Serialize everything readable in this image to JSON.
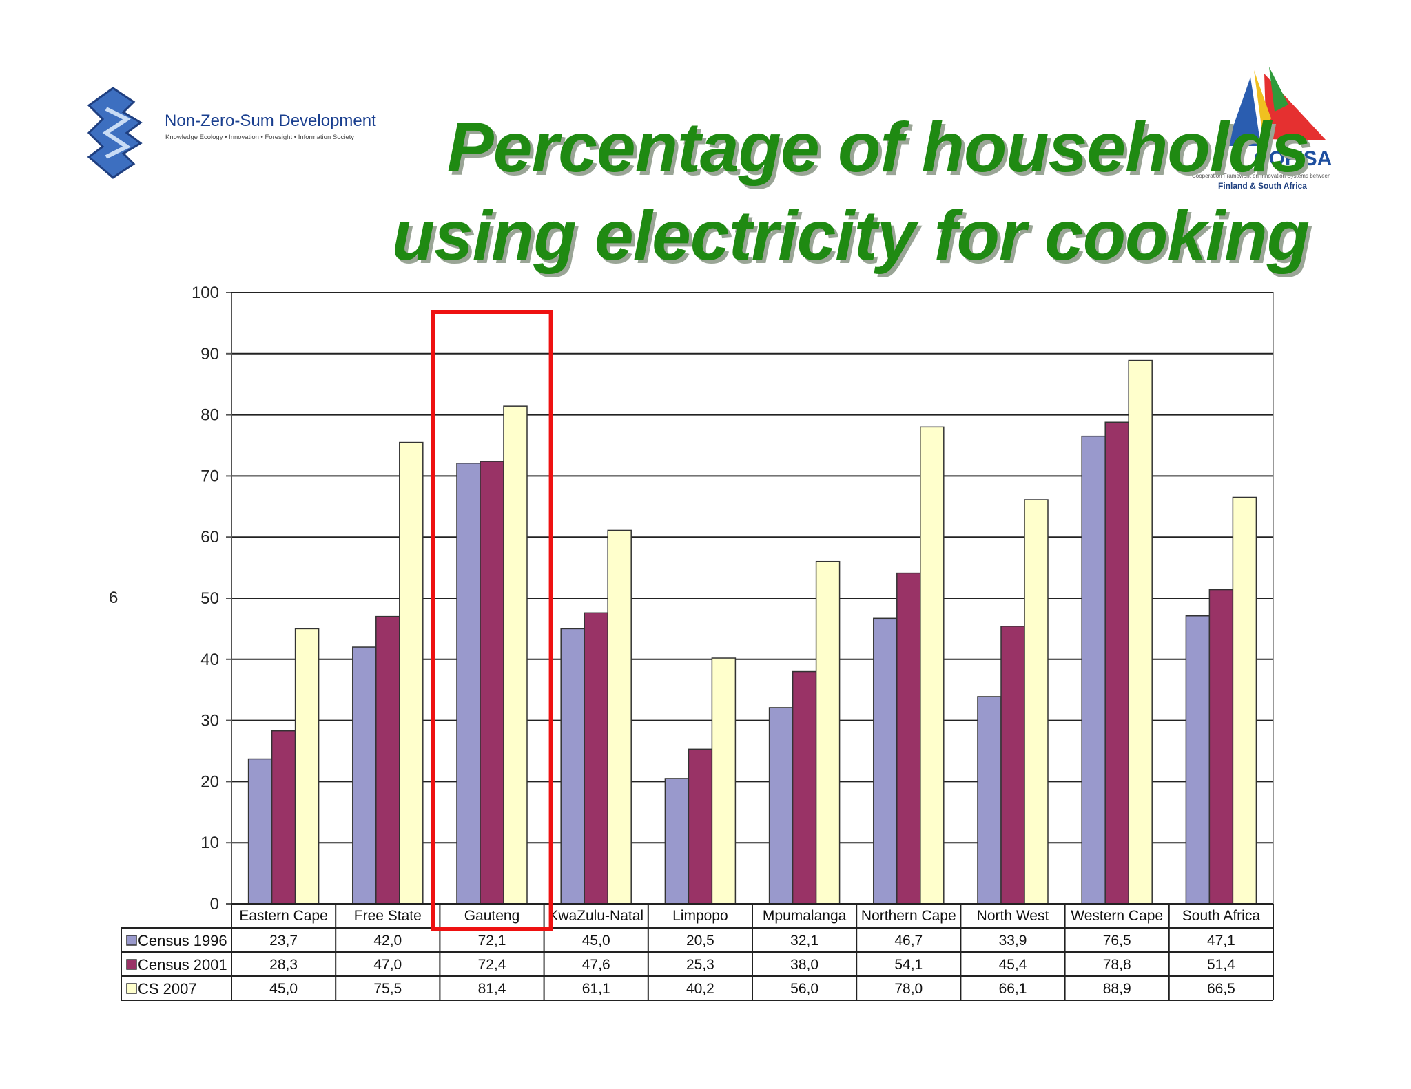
{
  "logo_left": {
    "name": "Non-Zero-Sum Development",
    "tagline": "Knowledge Ecology • Innovation • Foresight • Information Society"
  },
  "logo_right": {
    "name": "COFISA",
    "tagline_1": "Cooperation Framework on Innovation Systems between",
    "tagline_2": "Finland & South Africa"
  },
  "slide_title": {
    "line1": "Percentage of households",
    "line2": "using electricity for cooking"
  },
  "y_axis_stray_label": "6",
  "colors": {
    "census_1996": "#9999cc",
    "census_2001": "#993366",
    "cs_2007": "#ffffcc",
    "highlight": "#ee1111",
    "title": "#1f8a12"
  },
  "highlight_category": "Gauteng",
  "chart_data": {
    "type": "bar",
    "ylim": [
      0,
      100
    ],
    "yticks": [
      0,
      10,
      20,
      30,
      40,
      50,
      60,
      70,
      80,
      90,
      100
    ],
    "grid": true,
    "legend": "data-table-left",
    "categories": [
      "Eastern Cape",
      "Free State",
      "Gauteng",
      "KwaZulu-Natal",
      "Limpopo",
      "Mpumalanga",
      "Northern Cape",
      "North West",
      "Western Cape",
      "South Africa"
    ],
    "series": [
      {
        "name": "Census 1996",
        "values": [
          23.7,
          42.0,
          72.1,
          45.0,
          20.5,
          32.1,
          46.7,
          33.9,
          76.5,
          47.1
        ],
        "labels": [
          "23,7",
          "42,0",
          "72,1",
          "45,0",
          "20,5",
          "32,1",
          "46,7",
          "33,9",
          "76,5",
          "47,1"
        ]
      },
      {
        "name": "Census 2001",
        "values": [
          28.3,
          47.0,
          72.4,
          47.6,
          25.3,
          38.0,
          54.1,
          45.4,
          78.8,
          51.4
        ],
        "labels": [
          "28,3",
          "47,0",
          "72,4",
          "47,6",
          "25,3",
          "38,0",
          "54,1",
          "45,4",
          "78,8",
          "51,4"
        ]
      },
      {
        "name": "CS 2007",
        "values": [
          45.0,
          75.5,
          81.4,
          61.1,
          40.2,
          56.0,
          78.0,
          66.1,
          88.9,
          66.5
        ],
        "labels": [
          "45,0",
          "75,5",
          "81,4",
          "61,1",
          "40,2",
          "56,0",
          "78,0",
          "66,1",
          "88,9",
          "66,5"
        ]
      }
    ]
  }
}
